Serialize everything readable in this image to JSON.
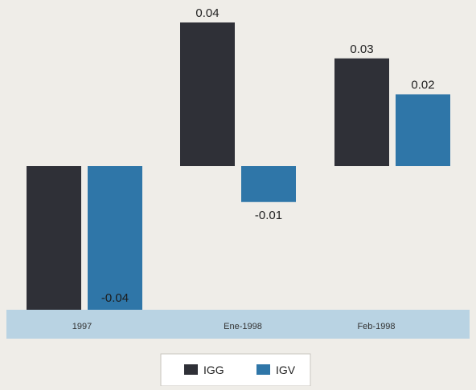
{
  "chart_data": {
    "type": "bar",
    "categories": [
      "1997",
      "Ene-1998",
      "Feb-1998"
    ],
    "series": [
      {
        "name": "IGG",
        "values": [
          -0.04,
          0.04,
          0.03
        ],
        "color": "#2f3037"
      },
      {
        "name": "IGV",
        "values": [
          -0.04,
          -0.01,
          0.02
        ],
        "color": "#2f76a8"
      }
    ],
    "data_labels": [
      [
        "",
        "-0.04"
      ],
      [
        "0.04",
        "-0.01"
      ],
      [
        "0.03",
        "0.02"
      ]
    ],
    "ylim": [
      -0.04,
      0.04
    ],
    "legend_position": "bottom-center",
    "category_band_color": "#b9d3e3"
  }
}
